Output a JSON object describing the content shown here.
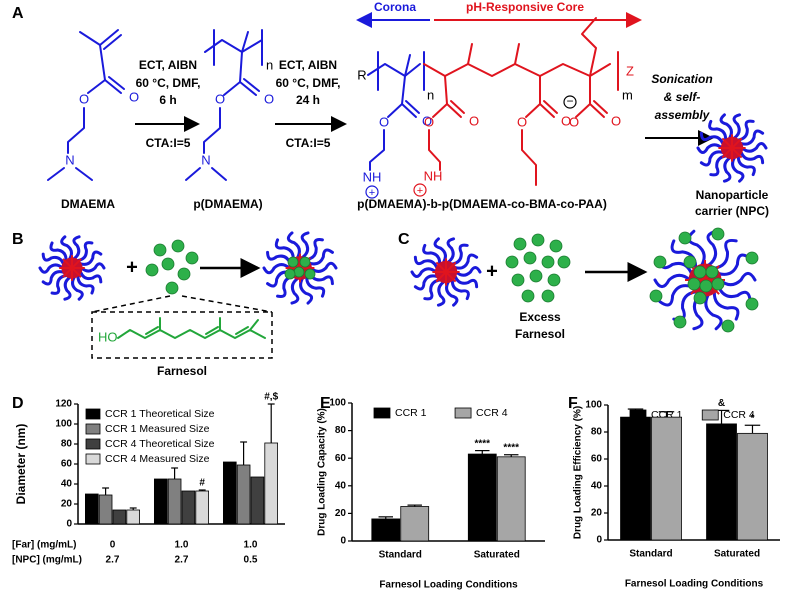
{
  "panel_a": {
    "label": "A",
    "corona": "Corona",
    "core": "pH-Responsive Core",
    "step1": [
      "ECT, AIBN",
      "60 °C, DMF,",
      "6 h",
      "CTA:I=5"
    ],
    "step2": [
      "ECT, AIBN",
      "60 °C, DMF,",
      "24 h",
      "CTA:I=5"
    ],
    "monomer": "DMAEMA",
    "homopolymer": "p(DMAEMA)",
    "copolymer": "p(DMAEMA)-b-p(DMAEMA-co-BMA-co-PAA)",
    "assembly": [
      "Sonication",
      "& self-",
      "assembly"
    ],
    "product": [
      "Nanoparticle",
      "carrier (NPC)"
    ],
    "atoms": [
      "O",
      "O",
      "N",
      "O",
      "O",
      "N",
      "n",
      "R",
      "n",
      "O",
      "O",
      "NH",
      "+",
      "O",
      "O",
      "NH",
      "+",
      "O",
      "O",
      "O",
      "O",
      "−",
      "Z",
      "m"
    ]
  },
  "panel_b": {
    "label": "B",
    "plus": "+",
    "hydroxyl": "HO",
    "drug": "Farnesol"
  },
  "panel_c": {
    "label": "C",
    "plus": "+",
    "drug": [
      "Excess",
      "Farnesol"
    ]
  },
  "chart_data": [
    {
      "type": "bar",
      "panel": "D",
      "ylabel": "Diameter (nm)",
      "x_row_labels": [
        "[Far] (mg/mL)",
        "[NPC] (mg/mL)"
      ],
      "categories": [
        "0",
        "1.0",
        "1.0"
      ],
      "categories2": [
        "2.7",
        "2.7",
        "0.5"
      ],
      "ylim": [
        0,
        120
      ],
      "yticks": [
        0,
        20,
        40,
        60,
        80,
        100,
        120
      ],
      "legend": "upper left",
      "series": [
        {
          "name": "CCR 1 Theoretical Size",
          "color": "#000000",
          "values": [
            30,
            45,
            62
          ]
        },
        {
          "name": "CCR 1 Measured Size",
          "color": "#808080",
          "values": [
            29,
            45,
            59
          ],
          "errors": [
            7,
            11,
            23
          ]
        },
        {
          "name": "CCR 4 Theoretical Size",
          "color": "#404040",
          "values": [
            14,
            33,
            47
          ]
        },
        {
          "name": "CCR 4 Measured Size",
          "color": "#d9d9d9",
          "values": [
            14,
            33,
            81
          ],
          "errors": [
            2,
            1,
            39
          ],
          "annotations": [
            null,
            "#",
            "#,$"
          ]
        }
      ]
    },
    {
      "type": "bar",
      "panel": "E",
      "ylabel": "Drug Loading Capacity (%)",
      "xlabel": "Farnesol Loading Conditions",
      "categories": [
        "Standard",
        "Saturated"
      ],
      "ylim": [
        0,
        100
      ],
      "yticks": [
        0,
        20,
        40,
        60,
        80,
        100
      ],
      "legend": "upper center",
      "series": [
        {
          "name": "CCR 1",
          "color": "#000000",
          "values": [
            16,
            63
          ],
          "errors": [
            1.5,
            2.5
          ],
          "annotations": [
            null,
            "****"
          ]
        },
        {
          "name": "CCR 4",
          "color": "#a6a6a6",
          "values": [
            25,
            61
          ],
          "errors": [
            1,
            1.5
          ],
          "annotations": [
            null,
            "****"
          ]
        }
      ]
    },
    {
      "type": "bar",
      "panel": "F",
      "ylabel": "Drug Loading Efficiency (%)",
      "xlabel": "Farnesol Loading Conditions",
      "categories": [
        "Standard",
        "Saturated"
      ],
      "ylim": [
        0,
        100
      ],
      "yticks": [
        0,
        20,
        40,
        60,
        80,
        100
      ],
      "legend": "upper center",
      "series": [
        {
          "name": "CCR 1",
          "color": "#000000",
          "values": [
            91,
            86
          ],
          "errors": [
            6,
            10
          ],
          "annotations": [
            null,
            "&"
          ]
        },
        {
          "name": "CCR 4",
          "color": "#a6a6a6",
          "values": [
            91,
            79
          ],
          "errors": [
            4,
            6
          ],
          "annotations": [
            null,
            "*"
          ]
        }
      ]
    }
  ]
}
